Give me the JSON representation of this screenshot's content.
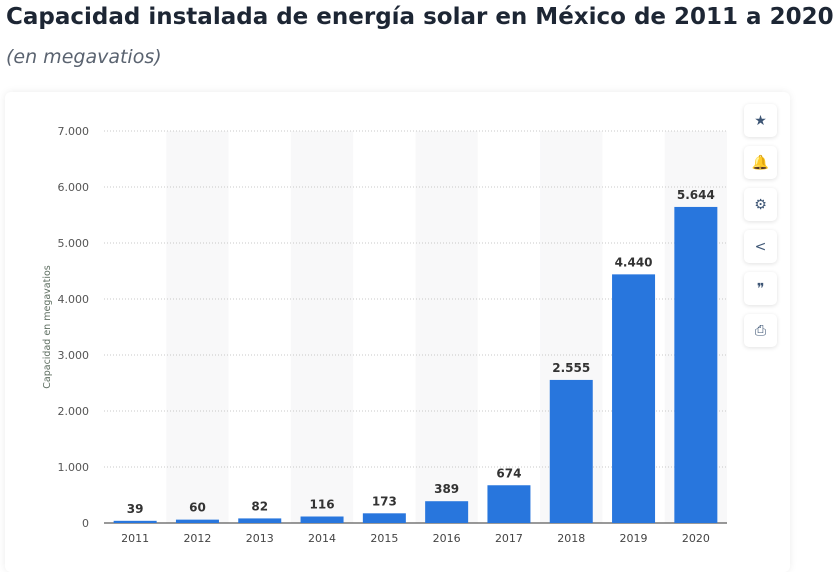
{
  "title": "Capacidad instalada de energía solar en México de 2011 a 2020",
  "subtitle": "(en megavatios)",
  "toolbar": [
    {
      "icon": "star-icon",
      "glyph": "★"
    },
    {
      "icon": "bell-icon",
      "glyph": "🔔"
    },
    {
      "icon": "gear-icon",
      "glyph": "⚙"
    },
    {
      "icon": "share-icon",
      "glyph": "<"
    },
    {
      "icon": "quote-icon",
      "glyph": "❞"
    },
    {
      "icon": "print-icon",
      "glyph": "⎙"
    }
  ],
  "chart_data": {
    "type": "bar",
    "categories": [
      "2011",
      "2012",
      "2013",
      "2014",
      "2015",
      "2016",
      "2017",
      "2018",
      "2019",
      "2020"
    ],
    "values": [
      39,
      60,
      82,
      116,
      173,
      389,
      674,
      2555,
      4440,
      5644
    ],
    "value_labels": [
      "39",
      "60",
      "82",
      "116",
      "173",
      "389",
      "674",
      "2.555",
      "4.440",
      "5.644"
    ],
    "ylabel": "Capacidad en megavatios",
    "ylim": [
      0,
      7000
    ],
    "yticks": [
      0,
      1000,
      2000,
      3000,
      4000,
      5000,
      6000,
      7000
    ],
    "ytick_labels": [
      "0",
      "1.000",
      "2.000",
      "3.000",
      "4.000",
      "5.000",
      "6.000",
      "7.000"
    ],
    "grid": true,
    "bar_color": "#2876dd"
  }
}
